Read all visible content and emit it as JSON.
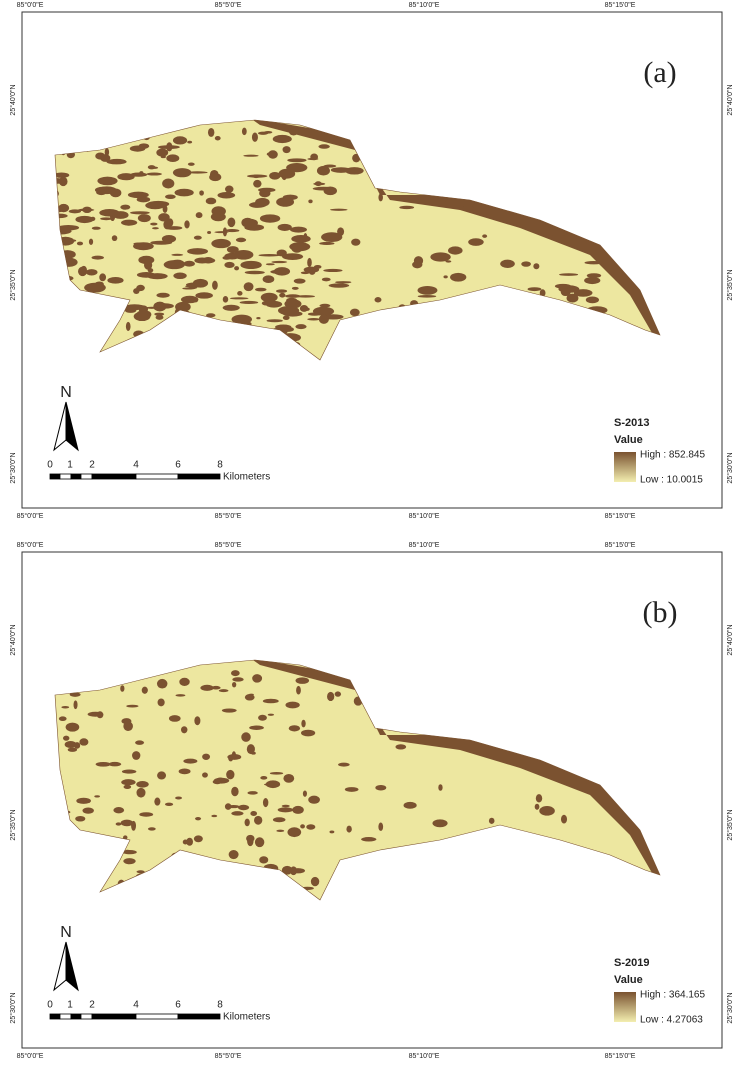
{
  "graticule": {
    "longitudes": [
      "85°0'0\"E",
      "85°5'0\"E",
      "85°10'0\"E",
      "85°15'0\"E"
    ],
    "latitudes": [
      "25°40'0\"N",
      "25°35'0\"N",
      "25°30'0\"N"
    ]
  },
  "north_arrow": "N",
  "scale_bar": {
    "labels": [
      "0",
      "1",
      "2",
      "4",
      "6",
      "8"
    ],
    "unit": "Kilometers"
  },
  "panels": [
    {
      "label": "(a)",
      "legend": {
        "title": "S-2013",
        "field": "Value",
        "high": "High : 852.845",
        "low": "Low : 10.0015"
      }
    },
    {
      "label": "(b)",
      "legend": {
        "title": "S-2019",
        "field": "Value",
        "high": "High : 364.165",
        "low": "Low : 4.27063"
      }
    }
  ]
}
